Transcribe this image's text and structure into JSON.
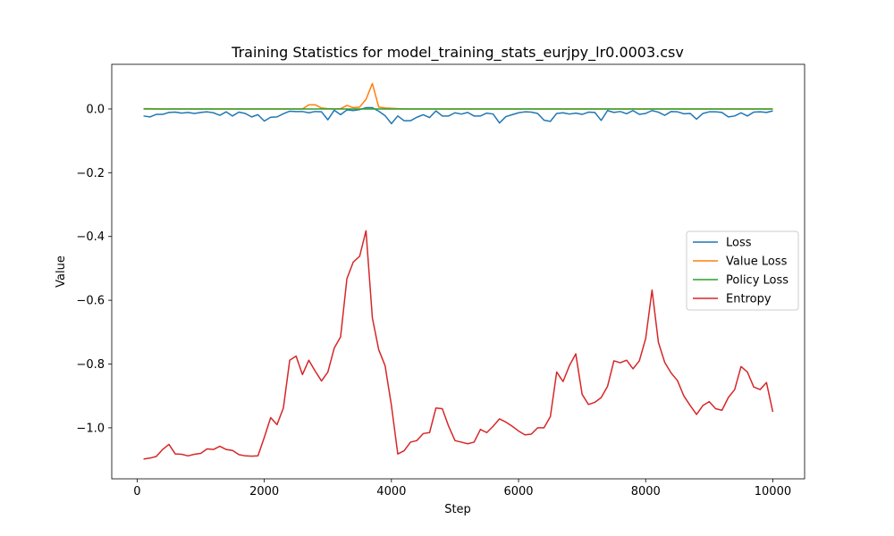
{
  "chart_data": {
    "type": "line",
    "title": "Training Statistics for model_training_stats_eurjpy_lr0.0003.csv",
    "xlabel": "Step",
    "ylabel": "Value",
    "xlim": [
      -400,
      10500
    ],
    "ylim": [
      -1.16,
      0.14
    ],
    "x_ticks": [
      0,
      2000,
      4000,
      6000,
      8000,
      10000
    ],
    "x_tick_labels": [
      "0",
      "2000",
      "4000",
      "6000",
      "8000",
      "10000"
    ],
    "y_ticks": [
      0.0,
      -0.2,
      -0.4,
      -0.6,
      -0.8,
      -1.0
    ],
    "y_tick_labels": [
      "0.0",
      "−0.2",
      "−0.4",
      "−0.6",
      "−0.8",
      "−1.0"
    ],
    "grid": false,
    "legend_position": "center-right",
    "x": [
      100,
      200,
      300,
      400,
      500,
      600,
      700,
      800,
      900,
      1000,
      1100,
      1200,
      1300,
      1400,
      1500,
      1600,
      1700,
      1800,
      1900,
      2000,
      2100,
      2200,
      2300,
      2400,
      2500,
      2600,
      2700,
      2800,
      2900,
      3000,
      3100,
      3200,
      3300,
      3400,
      3500,
      3600,
      3700,
      3800,
      3900,
      4000,
      4100,
      4200,
      4300,
      4400,
      4500,
      4600,
      4700,
      4800,
      4900,
      5000,
      5100,
      5200,
      5300,
      5400,
      5500,
      5600,
      5700,
      5800,
      5900,
      6000,
      6100,
      6200,
      6300,
      6400,
      6500,
      6600,
      6700,
      6800,
      6900,
      7000,
      7100,
      7200,
      7300,
      7400,
      7500,
      7600,
      7700,
      7800,
      7900,
      8000,
      8100,
      8200,
      8300,
      8400,
      8500,
      8600,
      8700,
      8800,
      8900,
      9000,
      9100,
      9200,
      9300,
      9400,
      9500,
      9600,
      9700,
      9800,
      9900,
      10000
    ],
    "series": [
      {
        "name": "Loss",
        "color": "#1f77b4",
        "values": [
          -0.022,
          -0.025,
          -0.017,
          -0.017,
          -0.011,
          -0.01,
          -0.013,
          -0.011,
          -0.014,
          -0.011,
          -0.009,
          -0.012,
          -0.02,
          -0.009,
          -0.022,
          -0.01,
          -0.014,
          -0.025,
          -0.018,
          -0.038,
          -0.026,
          -0.025,
          -0.015,
          -0.007,
          -0.008,
          -0.008,
          -0.012,
          -0.008,
          -0.009,
          -0.034,
          -0.004,
          -0.018,
          -0.003,
          -0.005,
          -0.002,
          0.004,
          0.004,
          -0.007,
          -0.021,
          -0.046,
          -0.022,
          -0.037,
          -0.037,
          -0.026,
          -0.018,
          -0.027,
          -0.006,
          -0.022,
          -0.022,
          -0.012,
          -0.016,
          -0.011,
          -0.022,
          -0.022,
          -0.013,
          -0.016,
          -0.044,
          -0.024,
          -0.018,
          -0.012,
          -0.009,
          -0.01,
          -0.014,
          -0.035,
          -0.039,
          -0.014,
          -0.012,
          -0.016,
          -0.013,
          -0.017,
          -0.01,
          -0.011,
          -0.036,
          -0.005,
          -0.011,
          -0.008,
          -0.015,
          -0.005,
          -0.017,
          -0.014,
          -0.005,
          -0.01,
          -0.02,
          -0.008,
          -0.009,
          -0.015,
          -0.014,
          -0.032,
          -0.014,
          -0.009,
          -0.009,
          -0.011,
          -0.025,
          -0.022,
          -0.012,
          -0.022,
          -0.01,
          -0.009,
          -0.011,
          -0.006
        ]
      },
      {
        "name": "Value Loss",
        "color": "#ff7f0e",
        "values": [
          0.001,
          0.001,
          0.0,
          0.0,
          0.0,
          0.0,
          0.0,
          0.0,
          0.0,
          0.0,
          0.0,
          0.0,
          0.0,
          0.0,
          0.0,
          0.0,
          0.0,
          0.0,
          0.0,
          0.0,
          0.0,
          0.0,
          0.0,
          0.0,
          0.0,
          0.0,
          0.013,
          0.013,
          0.003,
          0.001,
          0.0,
          0.001,
          0.011,
          0.004,
          0.006,
          0.03,
          0.08,
          0.006,
          0.003,
          0.002,
          0.001,
          0.0,
          0.0,
          0.0,
          0.0,
          0.0,
          0.0,
          0.0,
          0.0,
          0.0,
          0.0,
          0.0,
          0.0,
          0.0,
          0.0,
          0.0,
          0.0,
          0.0,
          0.0,
          0.0,
          0.0,
          0.0,
          0.0,
          0.0,
          0.0,
          0.0,
          0.0,
          0.0,
          0.0,
          0.0,
          0.0,
          0.0,
          0.0,
          0.0,
          0.0,
          0.0,
          0.0,
          0.0,
          0.0,
          0.0,
          0.0,
          0.0,
          0.0,
          0.0,
          0.0,
          0.0,
          0.0,
          0.0,
          0.0,
          0.0,
          0.0,
          0.0,
          0.0,
          0.0,
          0.0,
          0.0,
          0.0,
          0.0,
          0.0,
          0.0
        ]
      },
      {
        "name": "Policy Loss",
        "color": "#2ca02c",
        "values": [
          0.0,
          0.0,
          0.0,
          0.0,
          0.0,
          0.0,
          0.0,
          0.0,
          0.0,
          0.0,
          0.0,
          0.0,
          0.0,
          0.0,
          0.0,
          0.0,
          0.0,
          0.0,
          0.0,
          0.0,
          0.0,
          0.0,
          0.0,
          0.0,
          0.0,
          0.0,
          0.0,
          0.0,
          0.0,
          0.0,
          0.0,
          0.0,
          0.0,
          0.0,
          0.0,
          0.0,
          0.0,
          0.0,
          0.0,
          0.0,
          0.0,
          0.0,
          0.0,
          0.0,
          0.0,
          0.0,
          0.0,
          0.0,
          0.0,
          0.0,
          0.0,
          0.0,
          0.0,
          0.0,
          0.0,
          0.0,
          0.0,
          0.0,
          0.0,
          0.0,
          0.0,
          0.0,
          0.0,
          0.0,
          0.0,
          0.0,
          0.0,
          0.0,
          0.0,
          0.0,
          0.0,
          0.0,
          0.0,
          0.0,
          0.0,
          0.0,
          0.0,
          0.0,
          0.0,
          0.0,
          0.0,
          0.0,
          0.0,
          0.0,
          0.0,
          0.0,
          0.0,
          0.0,
          0.0,
          0.0,
          0.0,
          0.0,
          0.0,
          0.0,
          0.0,
          0.0,
          0.0,
          0.0,
          0.0,
          0.0
        ]
      },
      {
        "name": "Entropy",
        "color": "#d62728",
        "values": [
          -1.098,
          -1.095,
          -1.09,
          -1.068,
          -1.052,
          -1.082,
          -1.083,
          -1.088,
          -1.083,
          -1.08,
          -1.066,
          -1.068,
          -1.058,
          -1.068,
          -1.071,
          -1.084,
          -1.088,
          -1.089,
          -1.088,
          -1.03,
          -0.968,
          -0.99,
          -0.938,
          -0.788,
          -0.775,
          -0.833,
          -0.788,
          -0.822,
          -0.853,
          -0.825,
          -0.75,
          -0.715,
          -0.532,
          -0.48,
          -0.462,
          -0.382,
          -0.655,
          -0.755,
          -0.805,
          -0.93,
          -1.082,
          -1.072,
          -1.045,
          -1.04,
          -1.018,
          -1.015,
          -0.938,
          -0.94,
          -0.995,
          -1.04,
          -1.045,
          -1.05,
          -1.045,
          -1.005,
          -1.015,
          -0.995,
          -0.972,
          -0.982,
          -0.995,
          -1.01,
          -1.022,
          -1.02,
          -1.0,
          -1.0,
          -0.965,
          -0.825,
          -0.855,
          -0.805,
          -0.768,
          -0.895,
          -0.927,
          -0.92,
          -0.905,
          -0.87,
          -0.79,
          -0.796,
          -0.788,
          -0.815,
          -0.79,
          -0.72,
          -0.568,
          -0.732,
          -0.795,
          -0.828,
          -0.852,
          -0.9,
          -0.93,
          -0.958,
          -0.93,
          -0.918,
          -0.94,
          -0.945,
          -0.905,
          -0.88,
          -0.808,
          -0.825,
          -0.872,
          -0.88,
          -0.858,
          -0.95
        ]
      }
    ]
  }
}
